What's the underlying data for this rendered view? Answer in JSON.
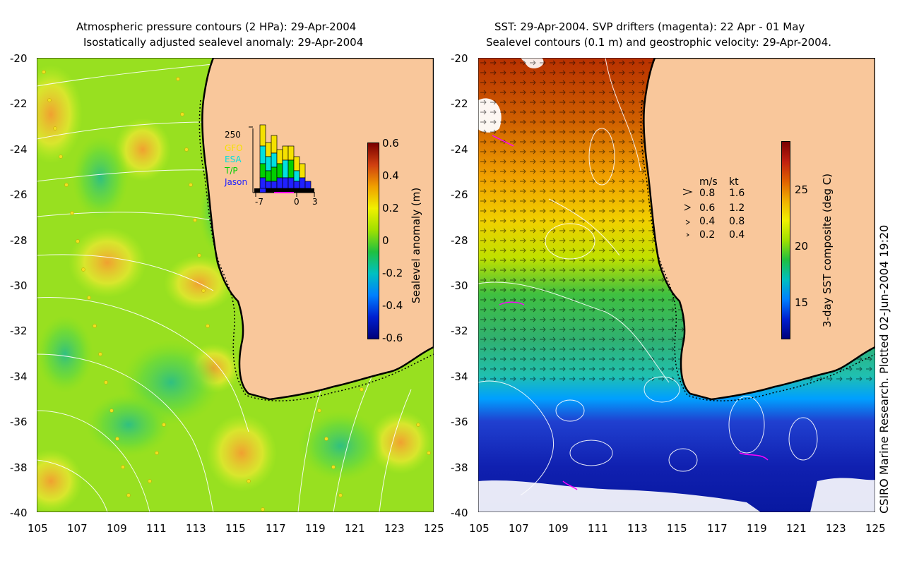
{
  "left_panel": {
    "title_line1": "Atmospheric pressure contours (2 HPa): 29-Apr-2004",
    "title_line2": "Isostatically adjusted sealevel anomaly: 29-Apr-2004",
    "colorbar": {
      "label": "Sealevel anomaly (m)",
      "ticks": [
        "0.6",
        "0.4",
        "0.2",
        "0",
        "-0.2",
        "-0.4",
        "-0.6"
      ]
    },
    "inset": {
      "ymax_label": "250",
      "legend": [
        "GFO",
        "ESA",
        "T/P",
        "Jason"
      ],
      "legend_colors": [
        "#f5e100",
        "#00e0e0",
        "#00d000",
        "#2020ff"
      ],
      "x_ticks": [
        "-7",
        "0",
        "3"
      ]
    }
  },
  "right_panel": {
    "title_line1": "SST: 29-Apr-2004. SVP drifters (magenta): 22 Apr - 01 May",
    "title_line2": "Sealevel contours (0.1 m) and geostrophic velocity: 29-Apr-2004.",
    "colorbar": {
      "label": "3-day SST composite (deg C)",
      "ticks": [
        "25",
        "20",
        "15"
      ]
    },
    "velocity_legend": {
      "header_ms": "m/s",
      "header_kt": "kt",
      "rows": [
        {
          "ms": "0.8",
          "kt": "1.6"
        },
        {
          "ms": "0.6",
          "kt": "1.2"
        },
        {
          "ms": "0.4",
          "kt": "0.8"
        },
        {
          "ms": "0.2",
          "kt": "0.4"
        }
      ]
    }
  },
  "axes": {
    "lat_ticks": [
      "-20",
      "-22",
      "-24",
      "-26",
      "-28",
      "-30",
      "-32",
      "-34",
      "-36",
      "-38",
      "-40"
    ],
    "lon_ticks": [
      "105",
      "107",
      "109",
      "111",
      "113",
      "115",
      "117",
      "119",
      "121",
      "123",
      "125"
    ]
  },
  "credit": "CSIRO Marine Research. Plotted 02-Jun-2004 19:20",
  "colors": {
    "land": "#f9c79b",
    "ocean_green": "#9be000",
    "sst_blue": "#1020b0"
  }
}
